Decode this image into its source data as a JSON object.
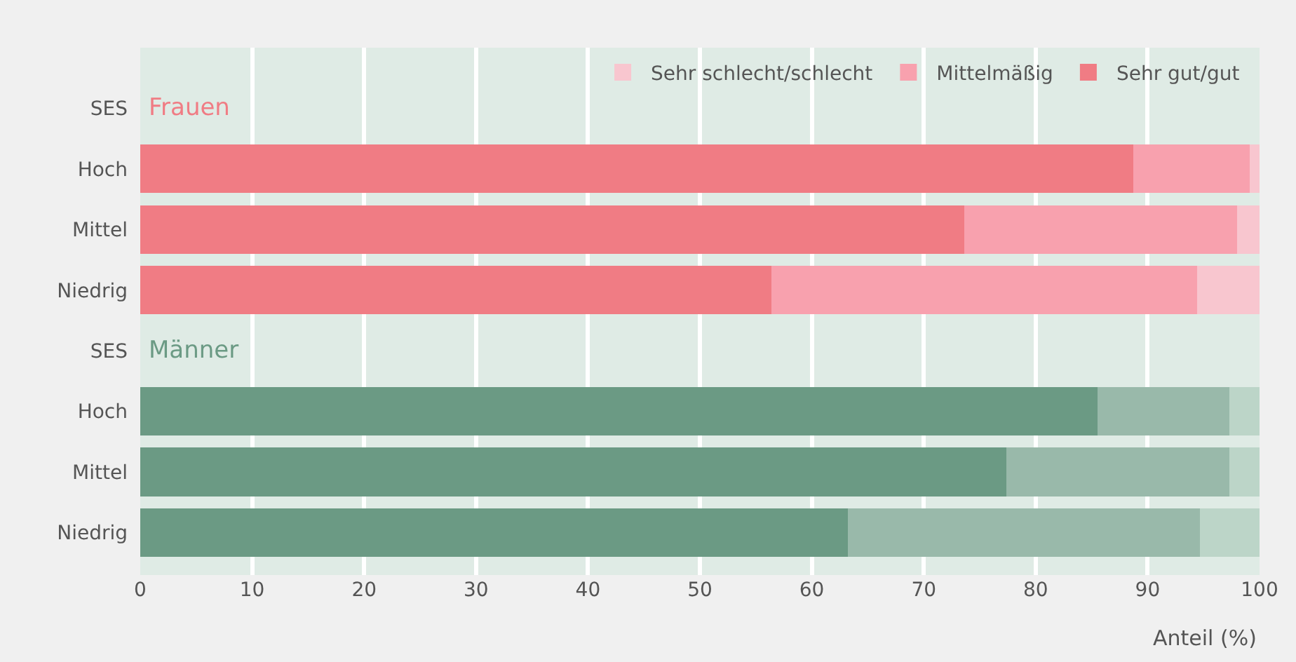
{
  "chart_data": {
    "type": "bar",
    "orientation": "horizontal",
    "stacked": true,
    "categories": [
      "SES",
      "Hoch",
      "Mittel",
      "Niedrig",
      "SES",
      "Hoch",
      "Mittel",
      "Niedrig"
    ],
    "series": [
      {
        "name": "Sehr gut/gut",
        "colors": [
          null,
          "#f07c84",
          "#f07c84",
          "#f07c84",
          null,
          "#6b9a84",
          "#6b9a84",
          "#6b9a84"
        ],
        "values": [
          null,
          88.7,
          73.6,
          56.4,
          null,
          85.5,
          77.4,
          63.2
        ]
      },
      {
        "name": "Mittelmäßig",
        "colors": [
          null,
          "#f8a1ae",
          "#f8a1ae",
          "#f8a1ae",
          null,
          "#99b9aa",
          "#99b9aa",
          "#99b9aa"
        ],
        "values": [
          null,
          10.4,
          24.4,
          38.0,
          null,
          11.8,
          19.9,
          31.5
        ]
      },
      {
        "name": "Sehr schlecht/schlecht",
        "colors": [
          null,
          "#f8c6cf",
          "#f8c6cf",
          "#f8c6cf",
          null,
          "#bcd5c8",
          "#bcd5c8",
          "#bcd5c8"
        ],
        "values": [
          null,
          0.9,
          2.0,
          5.6,
          null,
          2.7,
          2.7,
          5.3
        ]
      }
    ],
    "annotations": [
      "Frauen",
      "Männer"
    ],
    "xlabel": "Anteil (%)",
    "xlim": [
      0,
      100
    ],
    "xticks": [
      0,
      10,
      20,
      30,
      40,
      50,
      60,
      70,
      80,
      90,
      100
    ],
    "grid": "x",
    "legend": "top right"
  }
}
